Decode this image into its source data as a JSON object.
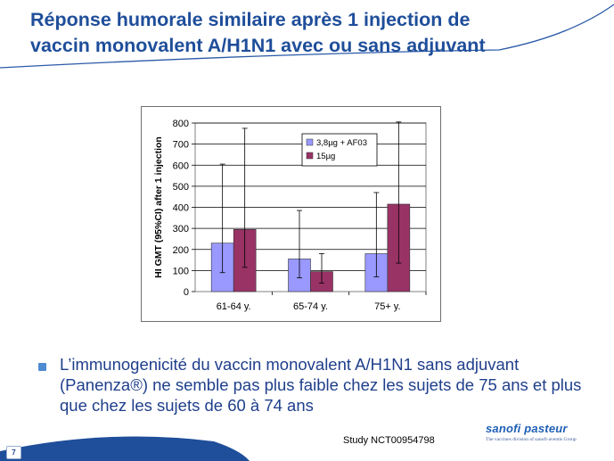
{
  "slide": {
    "title_line1": "Réponse humorale similaire après 1 injection de",
    "title_line2": "vaccin monovalent A/H1N1 avec ou sans adjuvant",
    "bullet": "L’immunogenicité du vaccin monovalent A/H1N1 sans adjuvant (Panenza®) ne semble pas plus faible chez les sujets de 75 ans et plus que chez les sujets de 60 à 74 ans",
    "study": "Study NCT00954798",
    "page_number": "7",
    "logo_main": "sanofi pasteur",
    "logo_sub": "The vaccines division of sanofi-aventis Group"
  },
  "colors": {
    "title": "#1f4e9a",
    "series1": "#9999ff",
    "series2": "#993366",
    "bullet_text": "#1f3f8c"
  },
  "chart_data": {
    "type": "bar",
    "title": "",
    "xlabel": "",
    "ylabel": "HI GMT (95%CI) after 1 injection",
    "categories": [
      "61-64 y.",
      "65-74 y.",
      "75+ y."
    ],
    "ylim": [
      0,
      800
    ],
    "yticks": [
      0,
      100,
      200,
      300,
      400,
      500,
      600,
      700,
      800
    ],
    "grid": true,
    "legend_position": "top-right",
    "series": [
      {
        "name": "3,8µg + AF03",
        "color": "#9999ff",
        "values": [
          230,
          155,
          180
        ],
        "ci_low": [
          90,
          65,
          70
        ],
        "ci_high": [
          605,
          385,
          470
        ]
      },
      {
        "name": "15µg",
        "color": "#993366",
        "values": [
          295,
          95,
          415
        ],
        "ci_low": [
          115,
          40,
          135
        ],
        "ci_high": [
          775,
          180,
          805
        ]
      }
    ]
  }
}
